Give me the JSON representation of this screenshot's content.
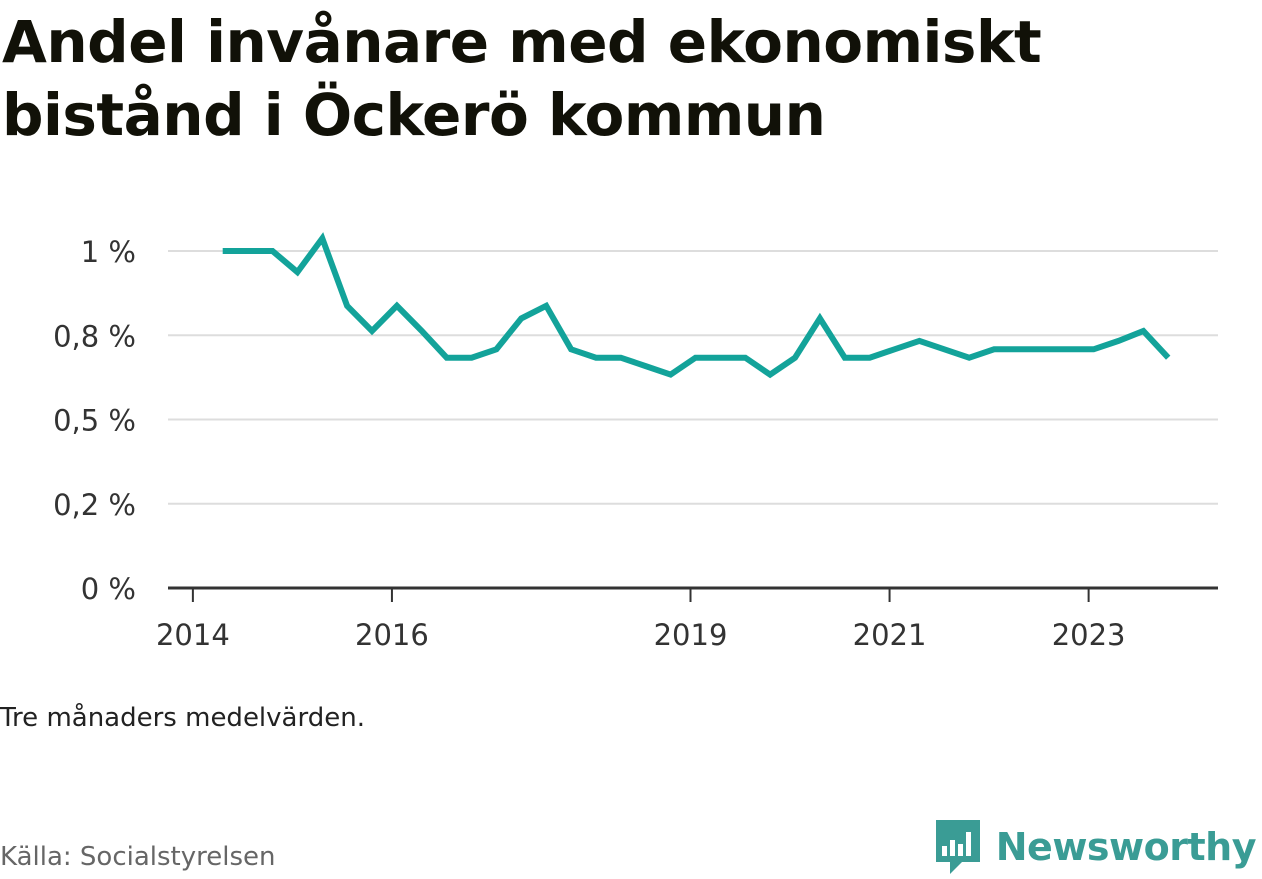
{
  "title": "Andel invånare med ekonomiskt bistånd i Öckerö kommun",
  "note": "Tre månaders medelvärden.",
  "source": "Källa: Socialstyrelsen",
  "brand": {
    "name": "Newsworthy",
    "icon": "newsworthy-logo-icon",
    "color": "#3a9c95"
  },
  "colors": {
    "line": "#13a39a",
    "grid": "#dddddd",
    "axis": "#333333"
  },
  "chart_data": {
    "type": "line",
    "title": "Andel invånare med ekonomiskt bistånd i Öckerö kommun",
    "xlabel": "",
    "ylabel": "",
    "grid": true,
    "y_ticks": [
      0,
      0.2,
      0.5,
      0.8,
      1
    ],
    "y_tick_labels": [
      "0 %",
      "0,2 %",
      "0,5 %",
      "0,8 %",
      "1 %"
    ],
    "x_ticks": [
      2014,
      2016,
      2019,
      2021,
      2023
    ],
    "x_tick_labels": [
      "2014",
      "2016",
      "2019",
      "2021",
      "2023"
    ],
    "xlim": [
      2013.75,
      2024.3
    ],
    "ylim": [
      0,
      1
    ],
    "series": [
      {
        "x": [
          2014.3,
          2014.55,
          2014.8,
          2015.05,
          2015.3,
          2015.55,
          2015.8,
          2016.05,
          2016.3,
          2016.55,
          2016.8,
          2017.05,
          2017.3,
          2017.55,
          2017.8,
          2018.05,
          2018.3,
          2018.55,
          2018.8,
          2019.05,
          2019.3,
          2019.55,
          2019.8,
          2020.05,
          2020.3,
          2020.55,
          2020.8,
          2021.05,
          2021.3,
          2021.55,
          2021.8,
          2022.05,
          2022.3,
          2022.55,
          2022.8,
          2023.05,
          2023.3,
          2023.55,
          2023.8
        ],
        "values": [
          1.0,
          1.0,
          1.0,
          0.95,
          1.03,
          0.87,
          0.81,
          0.87,
          0.81,
          0.72,
          0.72,
          0.75,
          0.84,
          0.87,
          0.75,
          0.72,
          0.72,
          0.69,
          0.66,
          0.72,
          0.72,
          0.72,
          0.66,
          0.72,
          0.84,
          0.72,
          0.72,
          0.75,
          0.78,
          0.75,
          0.72,
          0.75,
          0.75,
          0.75,
          0.75,
          0.75,
          0.78,
          0.81,
          0.72
        ]
      }
    ]
  }
}
